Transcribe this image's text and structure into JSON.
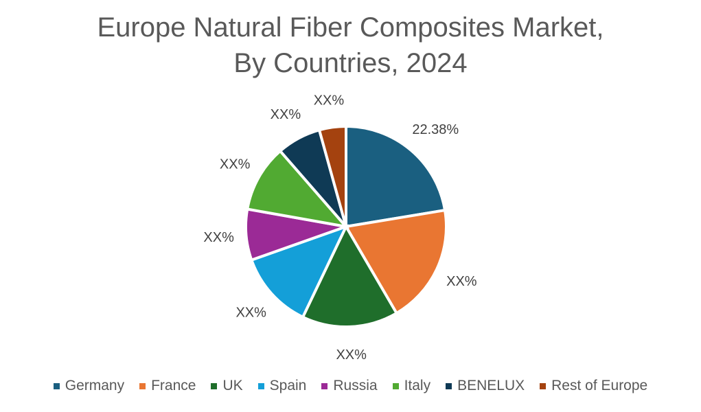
{
  "title_line1": "Europe Natural Fiber Composites Market,",
  "title_line2": "By Countries, 2024",
  "chart_data": {
    "type": "pie",
    "title": "Europe Natural Fiber Composites Market, By Countries, 2024",
    "categories": [
      "Germany",
      "France",
      "UK",
      "Spain",
      "Russia",
      "Italy",
      "BENELUX",
      "Rest of Europe"
    ],
    "values": [
      22.38,
      19.2,
      15.5,
      12.5,
      8.2,
      10.8,
      7.1,
      4.3
    ],
    "labels": [
      "22.38%",
      "XX%",
      "XX%",
      "XX%",
      "XX%",
      "XX%",
      "XX%",
      "XX%"
    ],
    "colors": [
      "#1a5f80",
      "#e97632",
      "#1f6e2b",
      "#149fd8",
      "#9b2a96",
      "#51aa32",
      "#0f3a55",
      "#a4420f"
    ],
    "legend_position": "bottom"
  }
}
